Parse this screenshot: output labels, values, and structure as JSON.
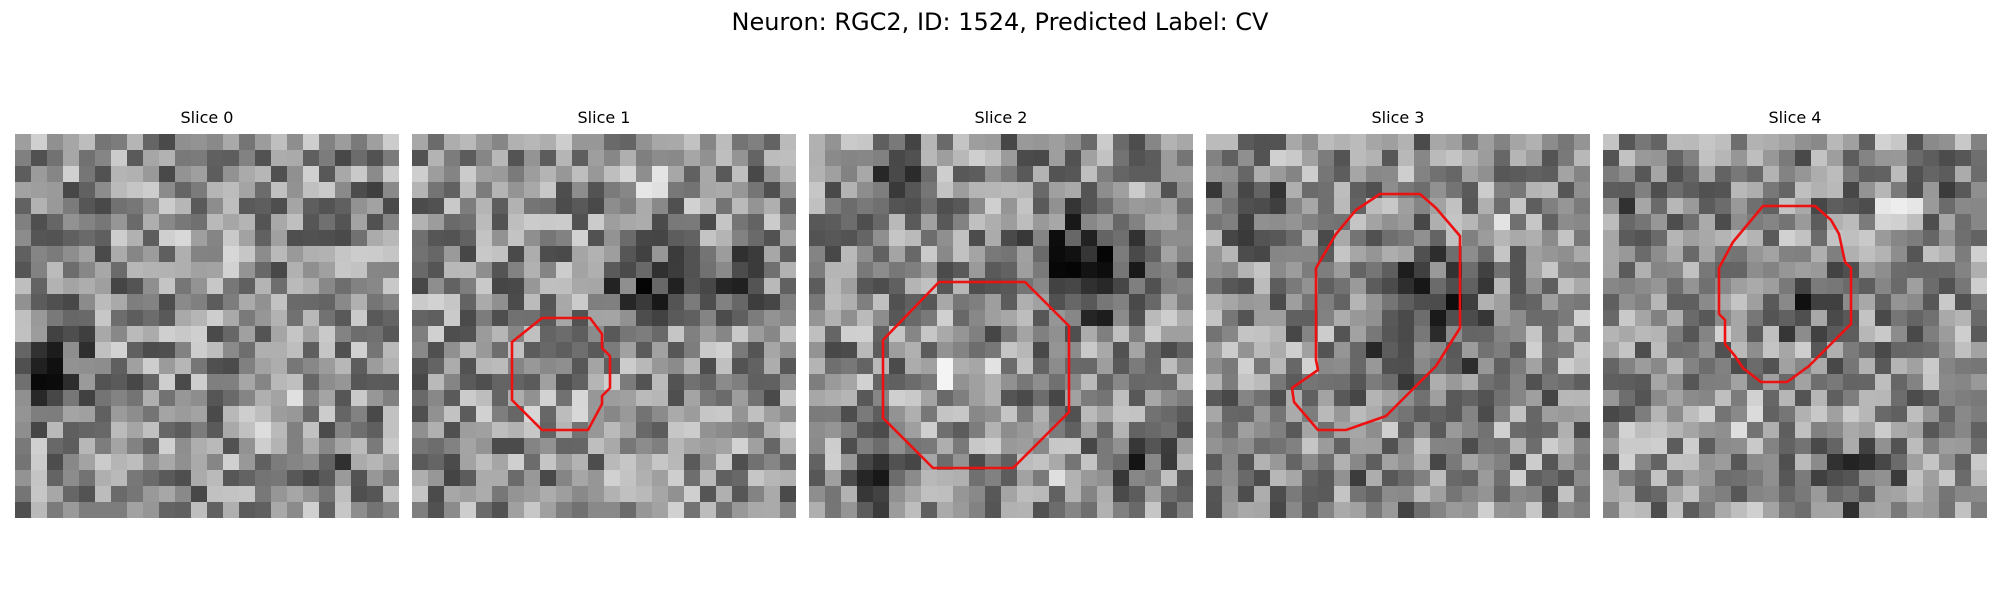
{
  "figure": {
    "title": "Neuron: RGC2, ID: 1524, Predicted Label: CV"
  },
  "panels": [
    {
      "title": "Slice 0",
      "has_contour": false
    },
    {
      "title": "Slice 1",
      "has_contour": true
    },
    {
      "title": "Slice 2",
      "has_contour": true
    },
    {
      "title": "Slice 3",
      "has_contour": true
    },
    {
      "title": "Slice 4",
      "has_contour": true
    }
  ],
  "colors": {
    "contour": "#ee1111",
    "background": "#ffffff",
    "colormap": "grayscale"
  }
}
